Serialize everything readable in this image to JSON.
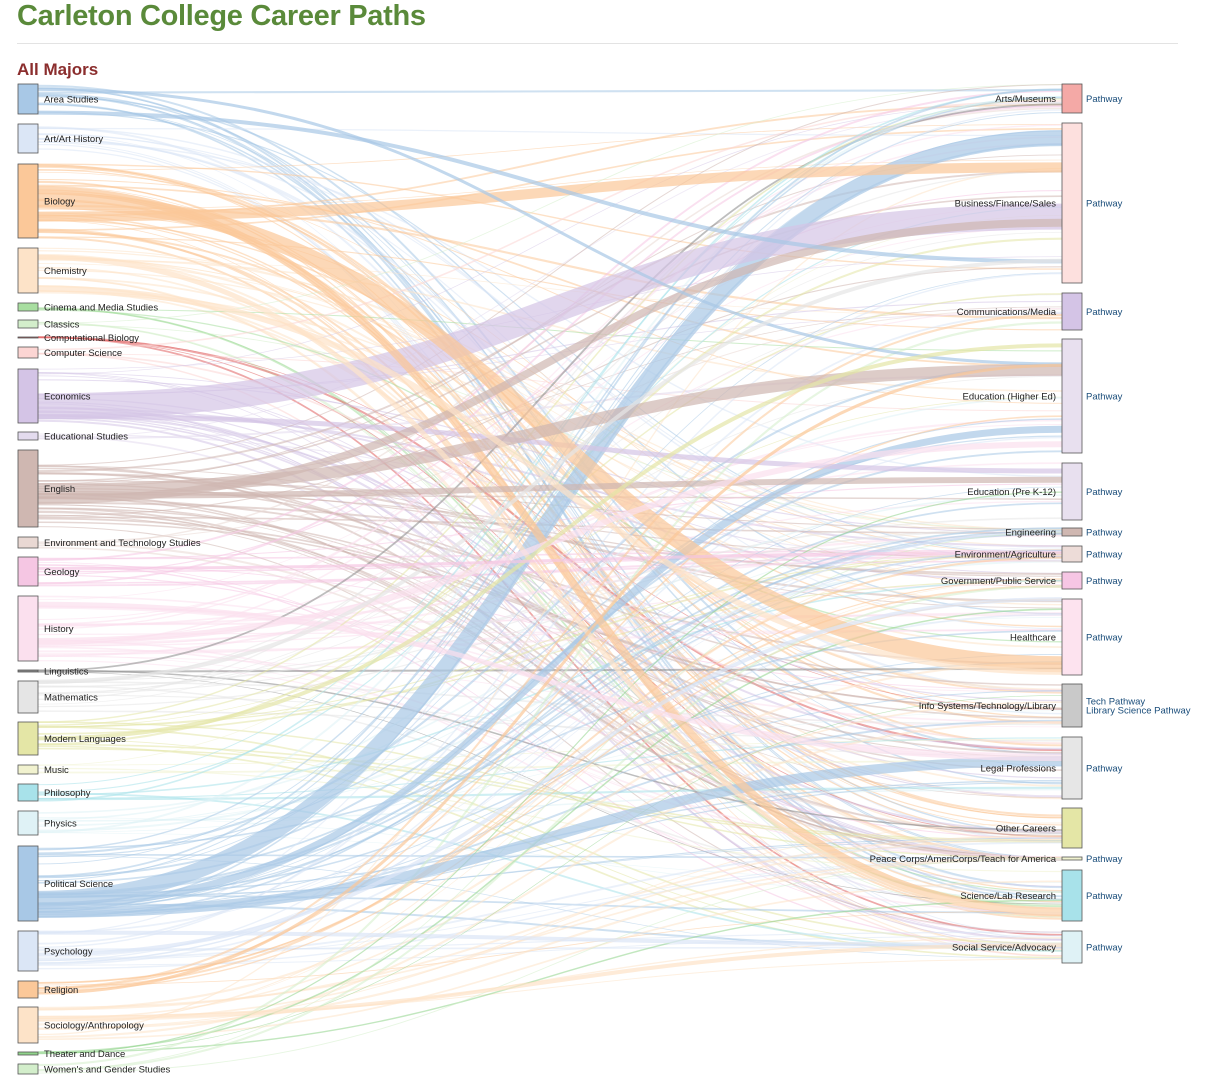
{
  "header": {
    "title": "Carleton College Career Paths",
    "section": "All Majors"
  },
  "diagram": {
    "majors": [
      {
        "name": "Area Studies",
        "color": "#a8c8e6"
      },
      {
        "name": "Art/Art History",
        "color": "#dbe6f6"
      },
      {
        "name": "Biology",
        "color": "#fbc899"
      },
      {
        "name": "Chemistry",
        "color": "#fde3c8"
      },
      {
        "name": "Cinema and Media Studies",
        "color": "#a8dea0"
      },
      {
        "name": "Classics",
        "color": "#d3eecb"
      },
      {
        "name": "Computational Biology",
        "color": "#e06060"
      },
      {
        "name": "Computer Science",
        "color": "#fcd5d3"
      },
      {
        "name": "Economics",
        "color": "#d4c4e6"
      },
      {
        "name": "Educational Studies",
        "color": "#e3dbee"
      },
      {
        "name": "English",
        "color": "#cfb7b1"
      },
      {
        "name": "Environment and Technology Studies",
        "color": "#e9d8d3"
      },
      {
        "name": "Geology",
        "color": "#f5c6e3"
      },
      {
        "name": "History",
        "color": "#fbe0ee"
      },
      {
        "name": "Linguistics",
        "color": "#888888"
      },
      {
        "name": "Mathematics",
        "color": "#e5e5e5"
      },
      {
        "name": "Modern Languages",
        "color": "#e4e6a6"
      },
      {
        "name": "Music",
        "color": "#f1f2cf"
      },
      {
        "name": "Philosophy",
        "color": "#a8e2ea"
      },
      {
        "name": "Physics",
        "color": "#dff2f6"
      },
      {
        "name": "Political Science",
        "color": "#a8c8e6"
      },
      {
        "name": "Psychology",
        "color": "#dbe6f6"
      },
      {
        "name": "Religion",
        "color": "#fbc899"
      },
      {
        "name": "Sociology/Anthropology",
        "color": "#fde3c8"
      },
      {
        "name": "Theater and Dance",
        "color": "#8fd38a"
      },
      {
        "name": "Women's and Gender Studies",
        "color": "#d3eecb"
      }
    ],
    "careers": [
      {
        "name": "Arts/Museums",
        "color": "#f4a9a6",
        "links": [
          "Pathway"
        ]
      },
      {
        "name": "Business/Finance/Sales",
        "color": "#fde0de",
        "links": [
          "Pathway"
        ]
      },
      {
        "name": "Communications/Media",
        "color": "#d4c4e6",
        "links": [
          "Pathway"
        ]
      },
      {
        "name": "Education (Higher Ed)",
        "color": "#e8e0ef",
        "links": [
          "Pathway"
        ]
      },
      {
        "name": "Education (Pre K-12)",
        "color": "#e8e0ef",
        "links": [
          "Pathway"
        ]
      },
      {
        "name": "Engineering",
        "color": "#cfb7b1",
        "links": [
          "Pathway"
        ]
      },
      {
        "name": "Environment/Agriculture",
        "color": "#eddcd8",
        "links": [
          "Pathway"
        ]
      },
      {
        "name": "Government/Public Service",
        "color": "#f6c6e4",
        "links": [
          "Pathway"
        ]
      },
      {
        "name": "Healthcare",
        "color": "#fde3ef",
        "links": [
          "Pathway"
        ]
      },
      {
        "name": "Info Systems/Technology/Library",
        "color": "#c9c9c9",
        "links": [
          "Tech Pathway",
          "Library Science Pathway"
        ]
      },
      {
        "name": "Legal Professions",
        "color": "#e6e6e6",
        "links": [
          "Pathway"
        ]
      },
      {
        "name": "Other Careers",
        "color": "#e4e6a6",
        "links": []
      },
      {
        "name": "Peace Corps/AmeriCorps/Teach for America",
        "color": "#f1f2cf",
        "links": [
          "Pathway"
        ]
      },
      {
        "name": "Science/Lab Research",
        "color": "#a8e2ea",
        "links": [
          "Pathway"
        ]
      },
      {
        "name": "Social Service/Advocacy",
        "color": "#dff2f6",
        "links": [
          "Pathway"
        ]
      }
    ]
  }
}
